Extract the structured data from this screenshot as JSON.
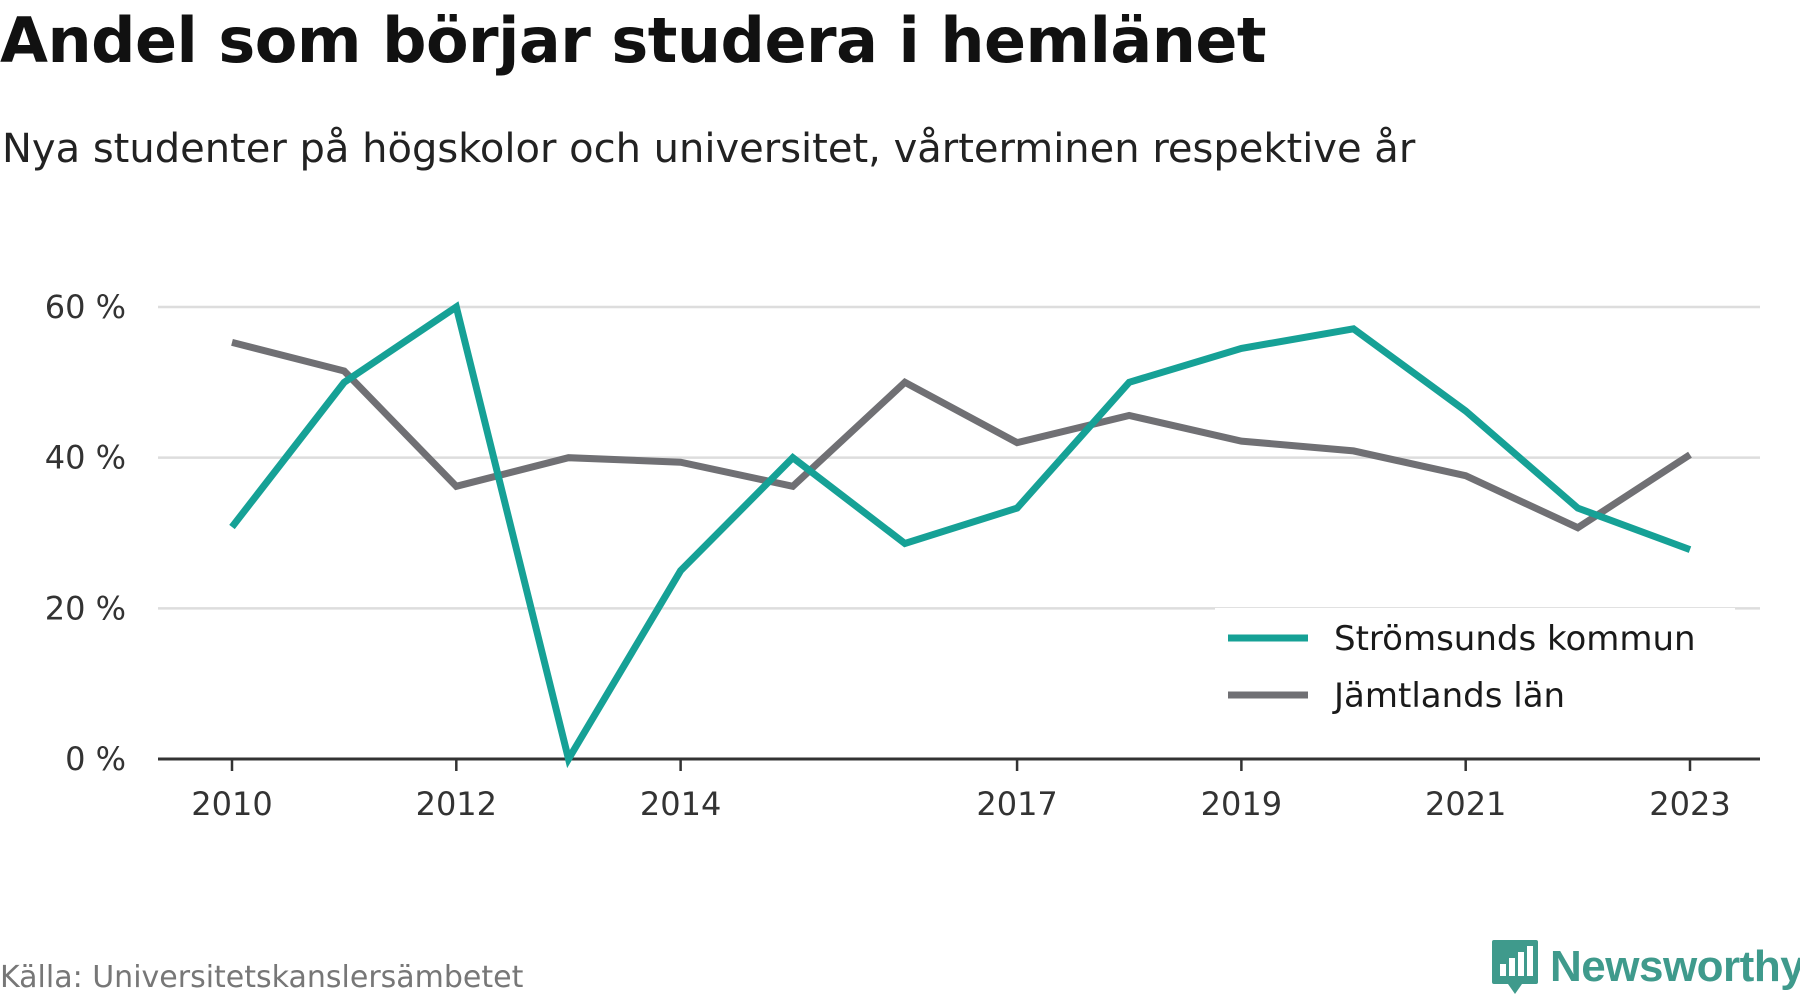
{
  "header": {
    "title": "Andel som börjar studera i hemlänet",
    "subtitle": "Nya studenter på högskolor och universitet, vårterminen respektive år"
  },
  "footer": {
    "source": "Källa: Universitetskanslersämbetet",
    "brand": "Newsworthy",
    "brand_icon": "bar-chart-badge-icon"
  },
  "colors": {
    "stromsund": "#16a196",
    "jamtland": "#707074",
    "grid": "#dddddd",
    "axis": "#333333",
    "brand": "#3f9a8c"
  },
  "chart_data": {
    "type": "line",
    "title": "Andel som börjar studera i hemlänet",
    "subtitle": "Nya studenter på högskolor och universitet, vårterminen respektive år",
    "x": [
      2010,
      2011,
      2012,
      2013,
      2014,
      2015,
      2016,
      2017,
      2018,
      2019,
      2020,
      2021,
      2022,
      2023
    ],
    "x_tick_values": [
      2010,
      2012,
      2014,
      2017,
      2019,
      2021,
      2023
    ],
    "x_tick_labels": [
      "2010",
      "2012",
      "2014",
      "2017",
      "2019",
      "2021",
      "2023"
    ],
    "ylim": [
      0,
      60
    ],
    "y_ticks": [
      0,
      20,
      40,
      60
    ],
    "y_tick_labels": [
      "0 %",
      "20 %",
      "40 %",
      "60 %"
    ],
    "grid": true,
    "legend_position": "bottom-right",
    "series": [
      {
        "name": "Strömsunds kommun",
        "color": "#16a196",
        "values": [
          30.8,
          50.0,
          60.0,
          0.0,
          25.0,
          40.0,
          28.6,
          33.3,
          50.0,
          54.5,
          57.1,
          46.2,
          33.3,
          27.8
        ]
      },
      {
        "name": "Jämtlands län",
        "color": "#707074",
        "values": [
          55.3,
          51.5,
          36.2,
          40.0,
          39.4,
          36.2,
          50.0,
          42.0,
          45.6,
          42.2,
          40.9,
          37.6,
          30.7,
          40.4
        ]
      }
    ]
  }
}
